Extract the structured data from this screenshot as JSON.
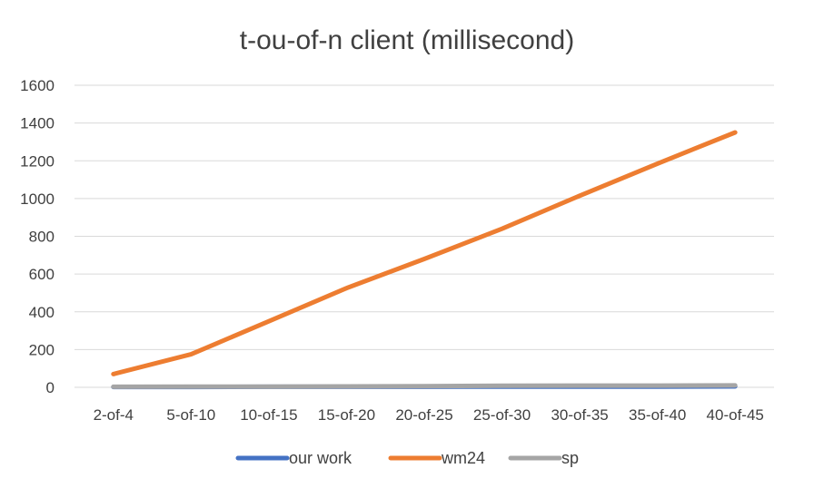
{
  "chart_data": {
    "type": "line",
    "title": "t-ou-of-n client (millisecond)",
    "xlabel": "",
    "ylabel": "",
    "categories": [
      "2-of-4",
      "5-of-10",
      "10-of-15",
      "15-of-20",
      "20-of-25",
      "25-of-30",
      "30-of-35",
      "35-of-40",
      "40-of-45"
    ],
    "ylim": [
      0,
      1600
    ],
    "yticks": [
      0,
      200,
      400,
      600,
      800,
      1000,
      1200,
      1400,
      1600
    ],
    "grid": true,
    "legend_position": "bottom",
    "series": [
      {
        "name": "our work",
        "color": "#4472c4",
        "values": [
          2,
          2,
          3,
          3,
          3,
          4,
          4,
          4,
          5
        ]
      },
      {
        "name": "wm24",
        "color": "#ed7d31",
        "values": [
          70,
          175,
          350,
          525,
          680,
          840,
          1015,
          1185,
          1350
        ]
      },
      {
        "name": "sp",
        "color": "#a5a5a5",
        "values": [
          3,
          4,
          4,
          5,
          6,
          8,
          9,
          9,
          10
        ]
      }
    ]
  }
}
